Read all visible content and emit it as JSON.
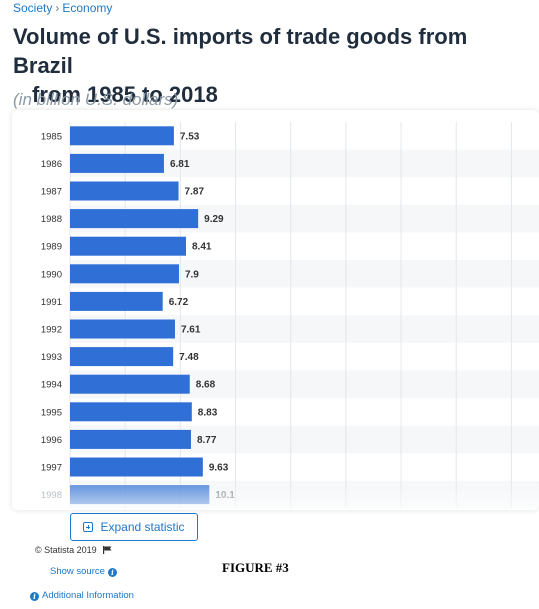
{
  "breadcrumb": {
    "items": [
      "Society",
      "Economy"
    ],
    "separator": "›"
  },
  "page": {
    "title_line1": "Volume of U.S. imports of trade goods from Brazil",
    "title_line2": "from 1985 to 2018",
    "subtitle": "(in billion U.S. dollars)"
  },
  "chart_data": {
    "type": "bar",
    "orientation": "horizontal",
    "categories": [
      "1985",
      "1986",
      "1987",
      "1988",
      "1989",
      "1990",
      "1991",
      "1992",
      "1993",
      "1994",
      "1995",
      "1996",
      "1997",
      "1998"
    ],
    "values": [
      7.53,
      6.81,
      7.87,
      9.29,
      8.41,
      7.9,
      6.72,
      7.61,
      7.48,
      8.68,
      8.83,
      8.77,
      9.63,
      10.1
    ],
    "value_labels": [
      "7.53",
      "6.81",
      "7.87",
      "9.29",
      "8.41",
      "7.9",
      "6.72",
      "7.61",
      "7.48",
      "8.68",
      "8.83",
      "8.77",
      "9.63",
      "10.1"
    ],
    "xlim": [
      0,
      34
    ],
    "grid": true,
    "bar_color": "#2f6fd6",
    "faded_last_row": true,
    "title": "",
    "xlabel": "",
    "ylabel": ""
  },
  "actions": {
    "expand_label": "Expand statistic"
  },
  "footer": {
    "copyright": "© Statista 2019",
    "show_source": "Show source",
    "additional_info": "Additional Information",
    "figure_label": "FIGURE #3"
  },
  "icons": {
    "flag": "flag-icon",
    "info": "info-icon",
    "expand": "expand-icon"
  },
  "colors": {
    "accent": "#1f78c8",
    "bar": "#2f6fd6",
    "title": "#1f2d3d",
    "subtitle": "#8b99a6"
  }
}
